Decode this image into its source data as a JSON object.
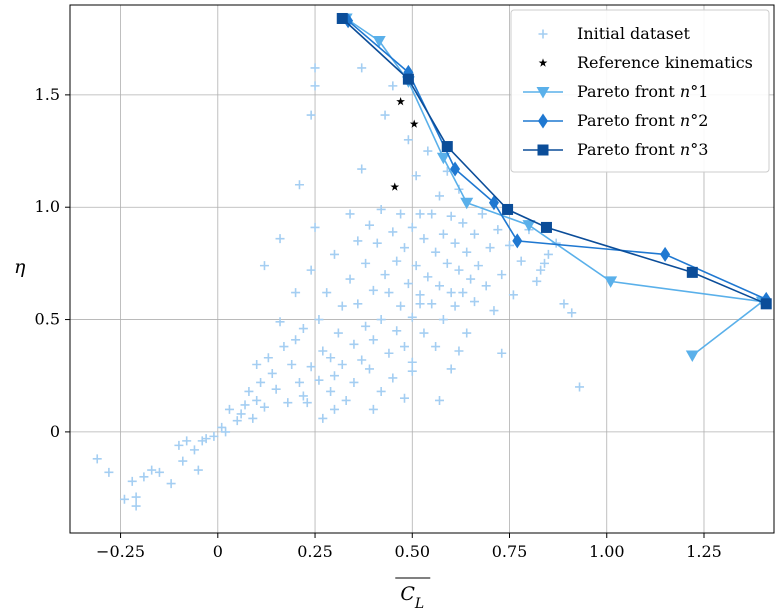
{
  "chart_data": {
    "type": "scatter",
    "xlabel": "C_L",
    "ylabel": "η",
    "xlim": [
      -0.38,
      1.43
    ],
    "ylim": [
      -0.45,
      1.9
    ],
    "xticks": [
      -0.25,
      0,
      0.25,
      0.5,
      0.75,
      1.0,
      1.25
    ],
    "xtick_labels": [
      "−0.25",
      "0",
      "0.25",
      "0.50",
      "0.75",
      "1.00",
      "1.25"
    ],
    "yticks": [
      0,
      0.5,
      1.0,
      1.5
    ],
    "ytick_labels": [
      "0",
      "0.5",
      "1.0",
      "1.5"
    ],
    "grid": true,
    "legend_position": "top-right",
    "series": [
      {
        "name": "Initial dataset",
        "kind": "scatter",
        "marker": "plus",
        "color": "#a4cef2",
        "points": [
          [
            -0.31,
            -0.12
          ],
          [
            -0.28,
            -0.18
          ],
          [
            -0.24,
            -0.3
          ],
          [
            -0.22,
            -0.22
          ],
          [
            -0.21,
            -0.29
          ],
          [
            -0.21,
            -0.33
          ],
          [
            -0.19,
            -0.2
          ],
          [
            -0.17,
            -0.17
          ],
          [
            -0.15,
            -0.18
          ],
          [
            -0.12,
            -0.23
          ],
          [
            -0.1,
            -0.06
          ],
          [
            -0.09,
            -0.13
          ],
          [
            -0.08,
            -0.04
          ],
          [
            -0.06,
            -0.08
          ],
          [
            -0.05,
            -0.17
          ],
          [
            -0.04,
            -0.04
          ],
          [
            -0.03,
            -0.03
          ],
          [
            -0.01,
            -0.02
          ],
          [
            0.01,
            0.02
          ],
          [
            0.02,
            0.0
          ],
          [
            0.03,
            0.1
          ],
          [
            0.05,
            0.05
          ],
          [
            0.06,
            0.08
          ],
          [
            0.07,
            0.12
          ],
          [
            0.08,
            0.18
          ],
          [
            0.09,
            0.06
          ],
          [
            0.1,
            0.3
          ],
          [
            0.1,
            0.14
          ],
          [
            0.11,
            0.22
          ],
          [
            0.12,
            0.74
          ],
          [
            0.12,
            0.11
          ],
          [
            0.13,
            0.33
          ],
          [
            0.14,
            0.26
          ],
          [
            0.15,
            0.19
          ],
          [
            0.16,
            0.86
          ],
          [
            0.16,
            0.49
          ],
          [
            0.17,
            0.38
          ],
          [
            0.18,
            0.13
          ],
          [
            0.19,
            0.3
          ],
          [
            0.2,
            0.62
          ],
          [
            0.2,
            0.41
          ],
          [
            0.21,
            1.1
          ],
          [
            0.21,
            0.22
          ],
          [
            0.22,
            0.46
          ],
          [
            0.23,
            0.13
          ],
          [
            0.24,
            1.41
          ],
          [
            0.24,
            0.72
          ],
          [
            0.24,
            0.29
          ],
          [
            0.25,
            1.54
          ],
          [
            0.25,
            1.62
          ],
          [
            0.25,
            0.91
          ],
          [
            0.26,
            0.5
          ],
          [
            0.26,
            0.23
          ],
          [
            0.27,
            0.36
          ],
          [
            0.28,
            0.62
          ],
          [
            0.29,
            0.33
          ],
          [
            0.29,
            0.18
          ],
          [
            0.3,
            0.79
          ],
          [
            0.3,
            0.25
          ],
          [
            0.31,
            0.44
          ],
          [
            0.32,
            0.56
          ],
          [
            0.32,
            0.3
          ],
          [
            0.33,
            0.14
          ],
          [
            0.34,
            0.68
          ],
          [
            0.34,
            0.97
          ],
          [
            0.35,
            0.39
          ],
          [
            0.35,
            0.22
          ],
          [
            0.36,
            0.85
          ],
          [
            0.36,
            0.57
          ],
          [
            0.37,
            0.32
          ],
          [
            0.37,
            1.62
          ],
          [
            0.37,
            1.17
          ],
          [
            0.38,
            0.47
          ],
          [
            0.38,
            0.75
          ],
          [
            0.39,
            0.92
          ],
          [
            0.39,
            0.28
          ],
          [
            0.4,
            0.63
          ],
          [
            0.4,
            0.41
          ],
          [
            0.4,
            0.1
          ],
          [
            0.41,
            0.84
          ],
          [
            0.42,
            0.5
          ],
          [
            0.42,
            0.99
          ],
          [
            0.42,
            0.18
          ],
          [
            0.43,
            1.41
          ],
          [
            0.43,
            0.7
          ],
          [
            0.44,
            0.35
          ],
          [
            0.44,
            0.62
          ],
          [
            0.45,
            0.89
          ],
          [
            0.45,
            1.54
          ],
          [
            0.45,
            0.24
          ],
          [
            0.46,
            0.76
          ],
          [
            0.46,
            0.45
          ],
          [
            0.47,
            0.97
          ],
          [
            0.47,
            0.56
          ],
          [
            0.48,
            0.82
          ],
          [
            0.48,
            0.38
          ],
          [
            0.49,
            1.3
          ],
          [
            0.49,
            0.66
          ],
          [
            0.5,
            0.91
          ],
          [
            0.5,
            0.51
          ],
          [
            0.5,
            0.27
          ],
          [
            0.51,
            0.74
          ],
          [
            0.51,
            1.14
          ],
          [
            0.52,
            0.61
          ],
          [
            0.52,
            0.97
          ],
          [
            0.53,
            0.86
          ],
          [
            0.53,
            0.44
          ],
          [
            0.54,
            1.25
          ],
          [
            0.54,
            0.69
          ],
          [
            0.55,
            0.57
          ],
          [
            0.55,
            0.97
          ],
          [
            0.56,
            0.8
          ],
          [
            0.56,
            0.38
          ],
          [
            0.57,
            1.05
          ],
          [
            0.57,
            0.65
          ],
          [
            0.58,
            0.88
          ],
          [
            0.58,
            0.5
          ],
          [
            0.59,
            0.75
          ],
          [
            0.59,
            1.16
          ],
          [
            0.6,
            0.62
          ],
          [
            0.6,
            0.96
          ],
          [
            0.61,
            0.84
          ],
          [
            0.61,
            0.56
          ],
          [
            0.62,
            0.72
          ],
          [
            0.62,
            1.08
          ],
          [
            0.63,
            0.93
          ],
          [
            0.63,
            0.62
          ],
          [
            0.64,
            0.8
          ],
          [
            0.65,
            0.68
          ],
          [
            0.66,
            0.88
          ],
          [
            0.66,
            0.58
          ],
          [
            0.67,
            0.74
          ],
          [
            0.68,
            0.97
          ],
          [
            0.69,
            0.65
          ],
          [
            0.7,
            0.82
          ],
          [
            0.71,
            0.54
          ],
          [
            0.72,
            0.9
          ],
          [
            0.73,
            0.7
          ],
          [
            0.73,
            0.35
          ],
          [
            0.75,
            0.83
          ],
          [
            0.76,
            0.61
          ],
          [
            0.78,
            0.76
          ],
          [
            0.8,
            0.9
          ],
          [
            0.82,
            0.67
          ],
          [
            0.83,
            0.72
          ],
          [
            0.84,
            0.75
          ],
          [
            0.85,
            0.79
          ],
          [
            0.87,
            0.84
          ],
          [
            0.89,
            0.57
          ],
          [
            0.91,
            0.53
          ],
          [
            0.93,
            0.2
          ],
          [
            0.57,
            0.14
          ],
          [
            0.6,
            0.28
          ],
          [
            0.62,
            0.36
          ],
          [
            0.64,
            0.44
          ],
          [
            0.48,
            0.15
          ],
          [
            0.5,
            0.31
          ],
          [
            0.52,
            0.57
          ],
          [
            0.27,
            0.06
          ],
          [
            0.3,
            0.1
          ],
          [
            0.22,
            0.16
          ]
        ]
      },
      {
        "name": "Reference kinematics",
        "kind": "scatter",
        "marker": "star",
        "color": "#000000",
        "points": [
          [
            0.455,
            1.09
          ],
          [
            0.47,
            1.47
          ],
          [
            0.505,
            1.37
          ]
        ]
      },
      {
        "name": "Pareto front n°1",
        "kind": "line",
        "marker": "triangle-down",
        "color": "#5ab0ea",
        "points": [
          [
            0.33,
            1.84
          ],
          [
            0.415,
            1.74
          ],
          [
            0.49,
            1.56
          ],
          [
            0.58,
            1.22
          ],
          [
            0.64,
            1.02
          ],
          [
            0.8,
            0.92
          ],
          [
            1.01,
            0.67
          ],
          [
            1.4,
            0.58
          ],
          [
            1.22,
            0.34
          ]
        ]
      },
      {
        "name": "Pareto front n°2",
        "kind": "line",
        "marker": "diamond",
        "color": "#1f78d1",
        "points": [
          [
            0.335,
            1.83
          ],
          [
            0.49,
            1.6
          ],
          [
            0.61,
            1.17
          ],
          [
            0.71,
            1.02
          ],
          [
            0.77,
            0.85
          ],
          [
            1.15,
            0.79
          ],
          [
            1.41,
            0.59
          ]
        ]
      },
      {
        "name": "Pareto front n°3",
        "kind": "line",
        "marker": "square",
        "color": "#0b4d99",
        "points": [
          [
            0.32,
            1.84
          ],
          [
            0.49,
            1.57
          ],
          [
            0.59,
            1.27
          ],
          [
            0.745,
            0.99
          ],
          [
            0.845,
            0.91
          ],
          [
            1.22,
            0.71
          ],
          [
            1.41,
            0.57
          ]
        ]
      }
    ]
  }
}
